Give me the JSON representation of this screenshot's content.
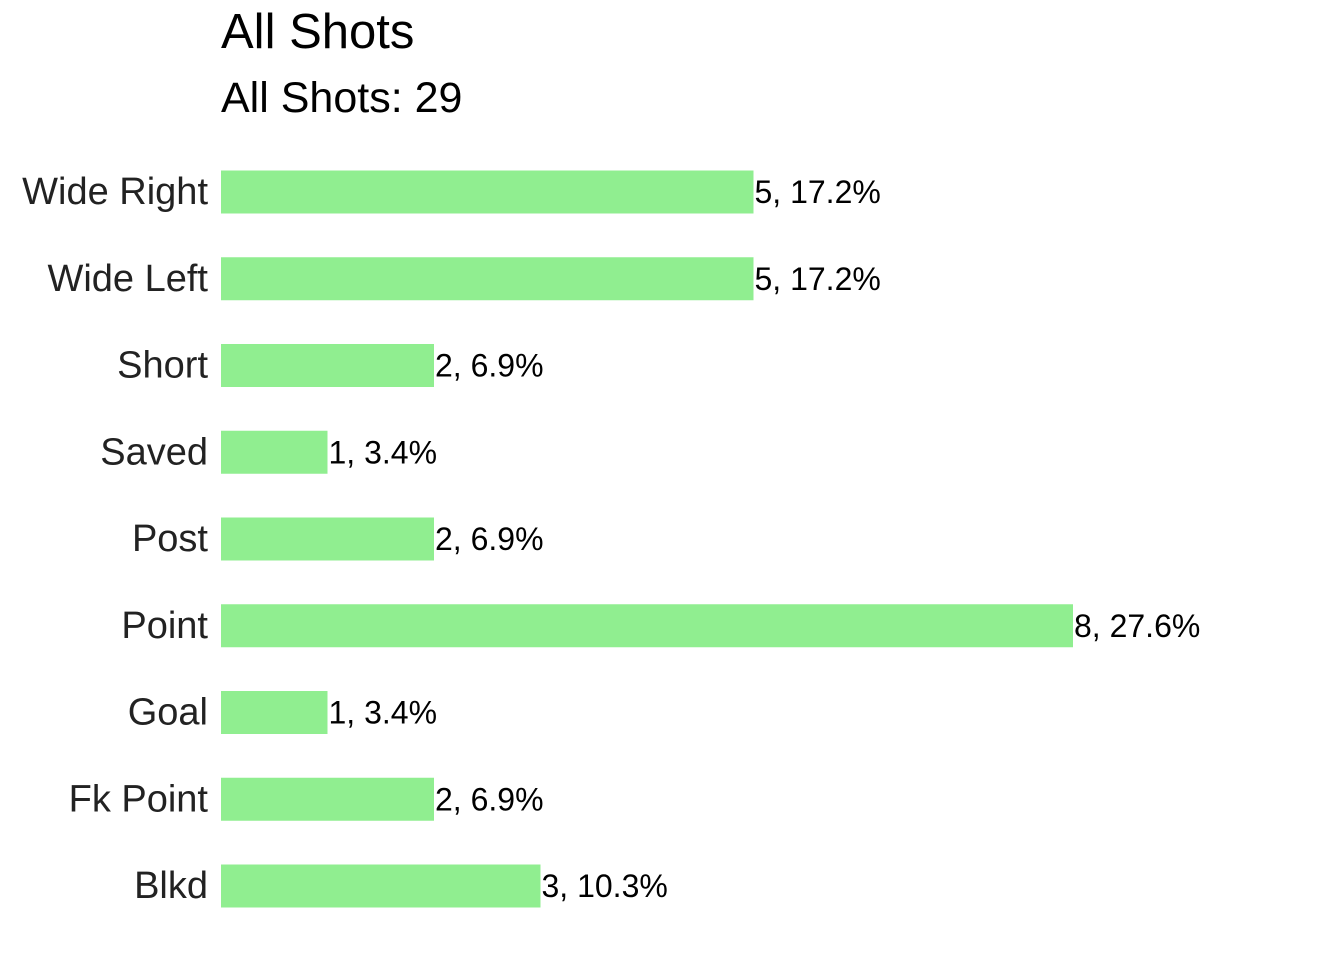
{
  "chart_data": {
    "type": "bar",
    "orientation": "horizontal",
    "title": "All Shots",
    "subtitle": "All Shots: 29",
    "xlabel": "",
    "ylabel": "",
    "grid": false,
    "bar_color": "#90EE90",
    "categories": [
      "Wide Right",
      "Wide Left",
      "Short",
      "Saved",
      "Post",
      "Point",
      "Goal",
      "Fk Point",
      "Blkd"
    ],
    "values": [
      5,
      5,
      2,
      1,
      2,
      8,
      1,
      2,
      3
    ],
    "data_labels": [
      "5, 17.2%",
      "5, 17.2%",
      "2, 6.9%",
      "1, 3.4%",
      "2, 6.9%",
      "8, 27.6%",
      "1, 3.4%",
      "2, 6.9%",
      "3, 10.3%"
    ],
    "xlim": [
      0,
      8
    ]
  }
}
